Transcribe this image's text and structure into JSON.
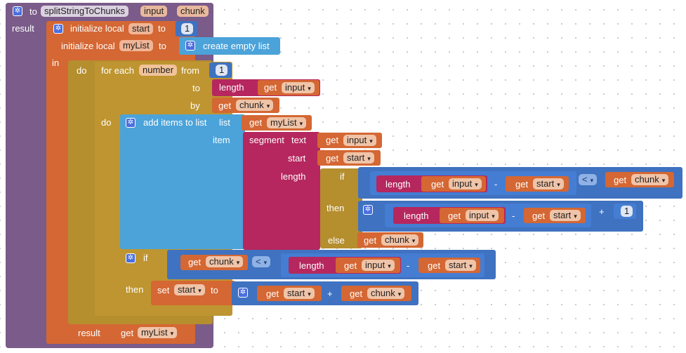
{
  "procedure": {
    "to_label": "to",
    "name": "splitStringToChunks",
    "params": [
      "input",
      "chunk"
    ],
    "result_label": "result"
  },
  "locals": {
    "init_label": "initialize local",
    "to_label": "to",
    "start_var": "start",
    "start_value": "1",
    "list_var": "myList",
    "create_empty_list": "create empty list",
    "in_label": "in",
    "do_label": "do"
  },
  "for_each": {
    "label": "for each",
    "var": "number",
    "from_label": "from",
    "from_value": "1",
    "to_label": "to",
    "by_label": "by",
    "do_label": "do"
  },
  "add_items": {
    "label": "add items to list",
    "list_label": "list",
    "item_label": "item"
  },
  "segment": {
    "label": "segment",
    "text_label": "text",
    "start_label": "start",
    "length_label": "length"
  },
  "expr": {
    "if_label": "if",
    "then_label": "then",
    "else_label": "else",
    "length_label": "length",
    "get_label": "get",
    "minus": "-",
    "plus": "+",
    "lt": "<",
    "one": "1",
    "dropdown": "▾"
  },
  "vars": {
    "input": "input",
    "chunk": "chunk",
    "start": "start",
    "myList": "myList"
  },
  "if_block": {
    "if_label": "if",
    "then_label": "then",
    "set_label": "set",
    "to_label": "to"
  },
  "result": {
    "label": "result"
  },
  "icons": {
    "mutator": "gear-icon"
  },
  "colors": {
    "procedure": "#7a5b89",
    "variables": "#d46733",
    "control": "#b58e2e",
    "lists": "#4ba3d9",
    "text": "#b5275e",
    "math": "#3f72c0"
  }
}
